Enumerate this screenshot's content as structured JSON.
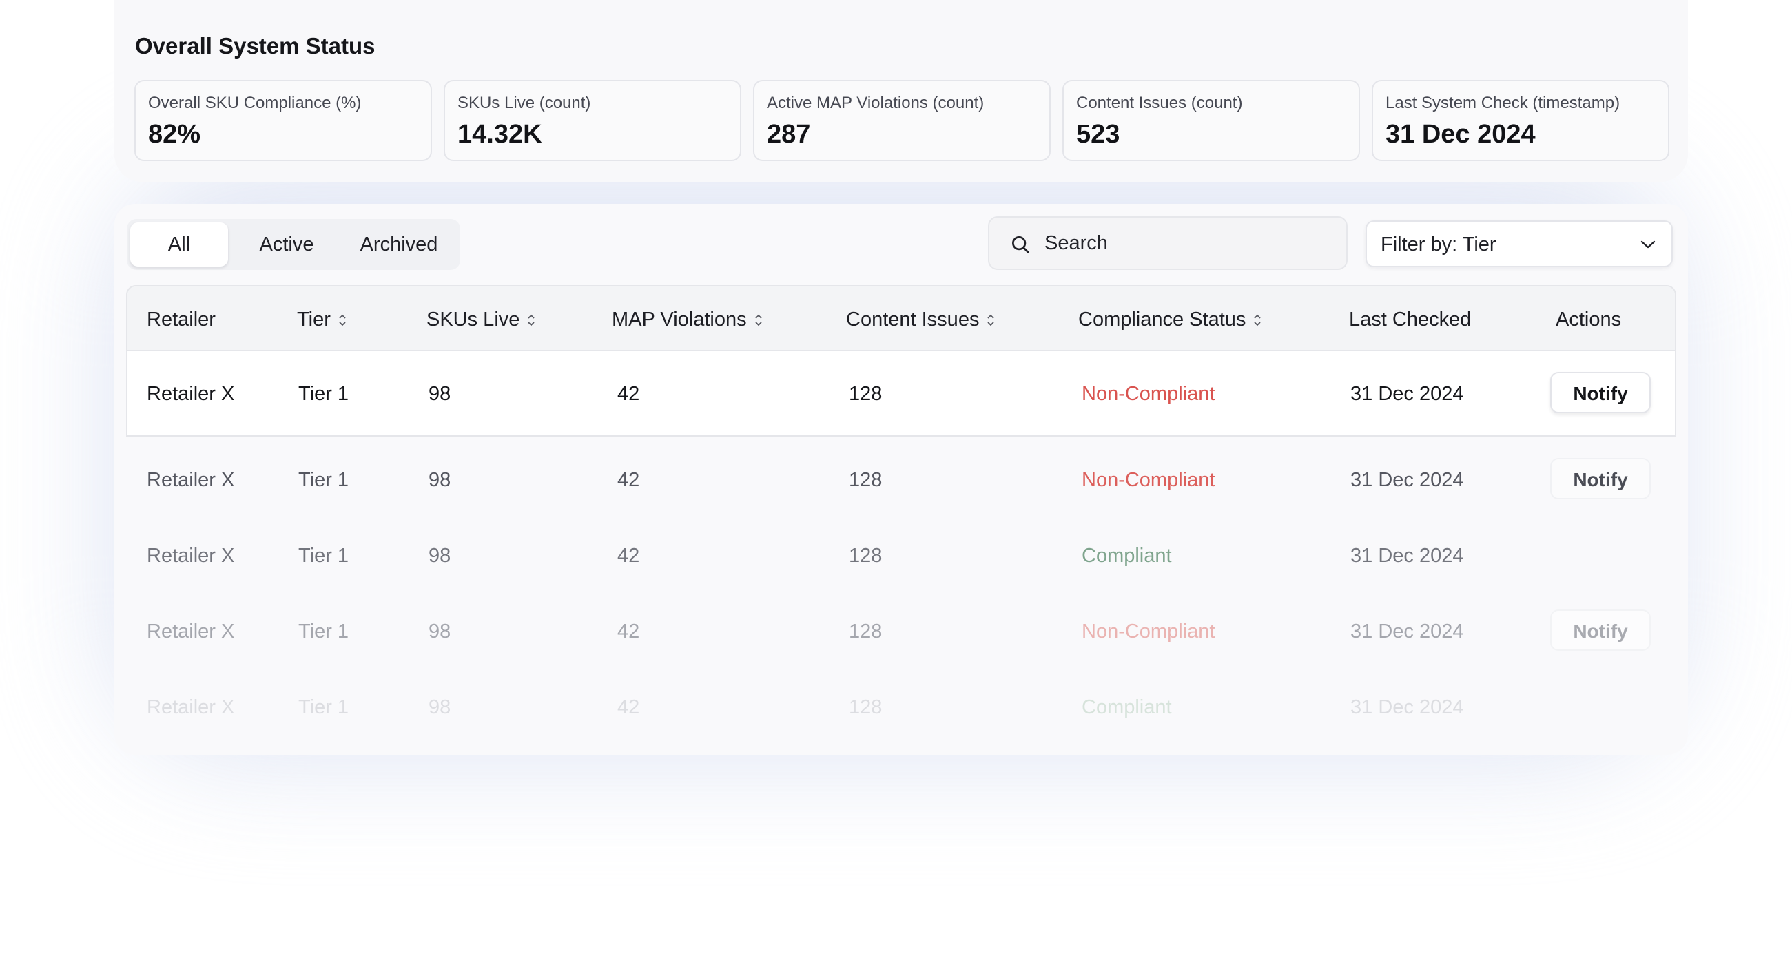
{
  "status": {
    "title": "Overall System Status",
    "kpis": [
      {
        "label": "Overall SKU Compliance (%)",
        "value": "82%"
      },
      {
        "label": "SKUs Live (count)",
        "value": "14.32K"
      },
      {
        "label": "Active MAP Violations (count)",
        "value": "287"
      },
      {
        "label": "Content Issues (count)",
        "value": "523"
      },
      {
        "label": "Last System Check (timestamp)",
        "value": "31 Dec 2024"
      }
    ]
  },
  "tabs": [
    "All",
    "Active",
    "Archived"
  ],
  "active_tab": "All",
  "search": {
    "placeholder": "Search",
    "icon": "search-icon"
  },
  "filter": {
    "label": "Filter by: Tier",
    "icon": "chevron-down-icon"
  },
  "table": {
    "headers": [
      "Retailer",
      "Tier",
      "SKUs Live",
      "MAP Violations",
      "Content Issues",
      "Compliance Status",
      "Last Checked",
      "Actions"
    ],
    "rows": [
      {
        "retailer": "Retailer X",
        "tier": "Tier 1",
        "skus": "98",
        "map": "42",
        "content": "128",
        "status": "Non-Compliant",
        "checked": "31 Dec 2024",
        "action": "Notify"
      },
      {
        "retailer": "Retailer X",
        "tier": "Tier 1",
        "skus": "98",
        "map": "42",
        "content": "128",
        "status": "Non-Compliant",
        "checked": "31 Dec 2024",
        "action": "Notify"
      },
      {
        "retailer": "Retailer X",
        "tier": "Tier 1",
        "skus": "98",
        "map": "42",
        "content": "128",
        "status": "Compliant",
        "checked": "31 Dec 2024",
        "action": ""
      },
      {
        "retailer": "Retailer X",
        "tier": "Tier 1",
        "skus": "98",
        "map": "42",
        "content": "128",
        "status": "Non-Compliant",
        "checked": "31 Dec 2024",
        "action": "Notify"
      },
      {
        "retailer": "Retailer X",
        "tier": "Tier 1",
        "skus": "98",
        "map": "42",
        "content": "128",
        "status": "Compliant",
        "checked": "31 Dec 2024",
        "action": ""
      }
    ]
  },
  "colors": {
    "non_compliant": "#d9534f",
    "compliant": "#6f9a7f",
    "text": "#1a1b1f"
  }
}
